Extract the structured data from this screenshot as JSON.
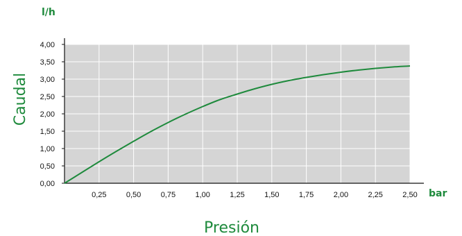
{
  "chart_data": {
    "type": "line",
    "y_unit": "l/h",
    "x_unit": "bar",
    "ylabel": "Caudal",
    "xlabel": "Presión",
    "x_ticks": [
      "0,25",
      "0,50",
      "0,75",
      "1,00",
      "1,25",
      "1,50",
      "1,75",
      "2,00",
      "2,25",
      "2,50"
    ],
    "y_ticks": [
      "0,00",
      "0,50",
      "1,00",
      "1,50",
      "2,00",
      "2,50",
      "3,00",
      "3,50",
      "4,00"
    ],
    "xlim": [
      0,
      2.5
    ],
    "ylim": [
      0,
      4.0
    ],
    "grid": true,
    "series": [
      {
        "x": [
          0,
          0.125,
          0.25,
          0.375,
          0.5,
          0.625,
          0.75,
          0.875,
          1.0,
          1.125,
          1.25,
          1.375,
          1.5,
          1.625,
          1.75,
          1.875,
          2.0,
          2.125,
          2.25,
          2.375,
          2.5
        ],
        "values": [
          0.0,
          0.31,
          0.62,
          0.92,
          1.21,
          1.49,
          1.75,
          1.99,
          2.21,
          2.41,
          2.57,
          2.72,
          2.85,
          2.96,
          3.05,
          3.13,
          3.2,
          3.26,
          3.31,
          3.35,
          3.38
        ]
      }
    ]
  },
  "colors": {
    "plot_bg": "#d5d5d5",
    "grid": "#ffffff",
    "line": "#1e8a3c",
    "accent": "#1e8a3c",
    "axis": "#111111"
  }
}
